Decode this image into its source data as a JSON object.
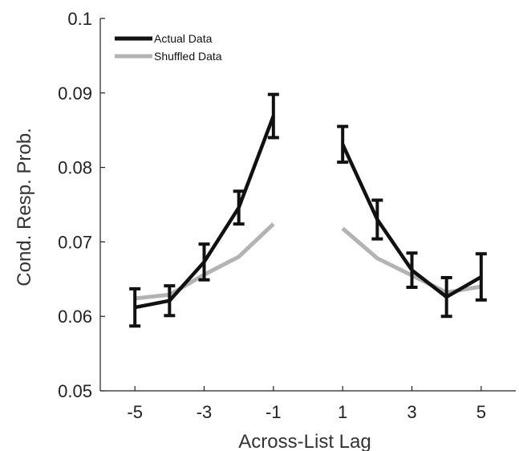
{
  "chart_data": {
    "type": "line",
    "title": "",
    "xlabel": "Across-List Lag",
    "ylabel": "Cond. Resp. Prob.",
    "xlim": [
      -6,
      6
    ],
    "ylim": [
      0.05,
      0.1
    ],
    "xticks": [
      -5,
      -3,
      -1,
      1,
      3,
      5
    ],
    "xtick_labels": [
      "-5",
      "-3",
      "-1",
      "1",
      "3",
      "5"
    ],
    "yticks": [
      0.05,
      0.06,
      0.07,
      0.08,
      0.09,
      0.1
    ],
    "ytick_labels": [
      "0.05",
      "0.06",
      "0.07",
      "0.08",
      "0.09",
      "0.1"
    ],
    "grid": false,
    "legend": "top-left",
    "series": [
      {
        "name": "Actual Data",
        "color": "#111111",
        "segments": [
          {
            "x": [
              -5,
              -4,
              -3,
              -2,
              -1
            ],
            "y": [
              0.0612,
              0.0621,
              0.0673,
              0.0746,
              0.0869
            ],
            "err": [
              0.0025,
              0.002,
              0.0024,
              0.0022,
              0.0029
            ]
          },
          {
            "x": [
              1,
              2,
              3,
              4,
              5
            ],
            "y": [
              0.0831,
              0.073,
              0.0662,
              0.0626,
              0.0653
            ],
            "err": [
              0.0024,
              0.0026,
              0.0023,
              0.0026,
              0.0031
            ]
          }
        ]
      },
      {
        "name": "Shuffled Data",
        "color": "#b3b3b3",
        "segments": [
          {
            "x": [
              -5,
              -4,
              -3,
              -2,
              -1
            ],
            "y": [
              0.0624,
              0.0629,
              0.0656,
              0.068,
              0.0724
            ]
          },
          {
            "x": [
              1,
              2,
              3,
              4,
              5
            ],
            "y": [
              0.0718,
              0.0678,
              0.0655,
              0.0632,
              0.064
            ]
          }
        ]
      }
    ]
  }
}
